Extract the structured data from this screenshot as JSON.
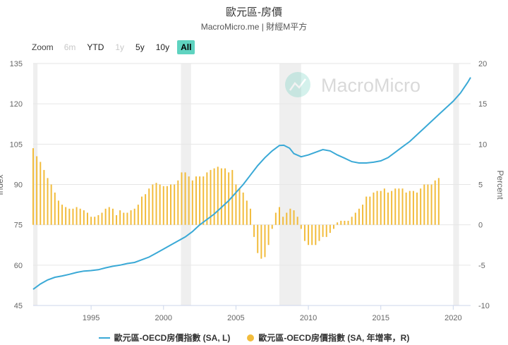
{
  "header": {
    "title": "歐元區-房價",
    "subtitle": "MacroMicro.me | 財經M平方"
  },
  "zoom": {
    "label": "Zoom",
    "buttons": [
      {
        "label": "6m",
        "state": "disabled"
      },
      {
        "label": "YTD",
        "state": "normal"
      },
      {
        "label": "1y",
        "state": "disabled"
      },
      {
        "label": "5y",
        "state": "normal"
      },
      {
        "label": "10y",
        "state": "normal"
      },
      {
        "label": "All",
        "state": "active"
      }
    ]
  },
  "watermark": {
    "text": "MacroMicro"
  },
  "legend": {
    "series1": "歐元區-OECD房價指數 (SA, L)",
    "series2": "歐元區-OECD房價指數 (SA, 年增率，R)"
  },
  "chart_data": {
    "type": "line+bar",
    "x_range": [
      1991.0,
      2021.2
    ],
    "x_ticks": [
      1995,
      2000,
      2005,
      2010,
      2015,
      2020
    ],
    "y_left": {
      "label": "Index",
      "range": [
        45,
        135
      ],
      "ticks": [
        45,
        60,
        75,
        90,
        105,
        120,
        135
      ]
    },
    "y_right": {
      "label": "Percent",
      "range": [
        -10,
        20
      ],
      "ticks": [
        -10,
        -5,
        0,
        5,
        10,
        15,
        20
      ]
    },
    "recessions": [
      [
        1991.0,
        1991.3
      ],
      [
        2001.2,
        2001.9
      ],
      [
        2008.0,
        2009.5
      ],
      [
        2020.0,
        2020.4
      ]
    ],
    "colors": {
      "line": "#3aa9d6",
      "bar": "#f2bc3c",
      "recession": "#efefef"
    },
    "series": [
      {
        "name": "歐元區-OECD房價指數 (SA, L)",
        "type": "line",
        "axis": "left",
        "points": [
          [
            1991.0,
            51.0
          ],
          [
            1991.5,
            53.0
          ],
          [
            1992.0,
            54.5
          ],
          [
            1992.5,
            55.5
          ],
          [
            1993.0,
            56.0
          ],
          [
            1993.5,
            56.6
          ],
          [
            1994.0,
            57.3
          ],
          [
            1994.5,
            57.8
          ],
          [
            1995.0,
            58.0
          ],
          [
            1995.5,
            58.3
          ],
          [
            1996.0,
            59.0
          ],
          [
            1996.5,
            59.6
          ],
          [
            1997.0,
            60.0
          ],
          [
            1997.5,
            60.6
          ],
          [
            1998.0,
            61.0
          ],
          [
            1998.5,
            62.0
          ],
          [
            1999.0,
            63.0
          ],
          [
            1999.5,
            64.5
          ],
          [
            2000.0,
            66.0
          ],
          [
            2000.5,
            67.5
          ],
          [
            2001.0,
            69.0
          ],
          [
            2001.5,
            70.5
          ],
          [
            2002.0,
            72.5
          ],
          [
            2002.5,
            75.0
          ],
          [
            2003.0,
            77.0
          ],
          [
            2003.5,
            79.0
          ],
          [
            2004.0,
            81.5
          ],
          [
            2004.5,
            84.0
          ],
          [
            2005.0,
            87.0
          ],
          [
            2005.5,
            90.0
          ],
          [
            2006.0,
            93.5
          ],
          [
            2006.5,
            97.0
          ],
          [
            2007.0,
            100.0
          ],
          [
            2007.5,
            102.5
          ],
          [
            2008.0,
            104.5
          ],
          [
            2008.3,
            104.6
          ],
          [
            2008.7,
            103.5
          ],
          [
            2009.0,
            101.5
          ],
          [
            2009.5,
            100.3
          ],
          [
            2010.0,
            101.0
          ],
          [
            2010.5,
            102.0
          ],
          [
            2011.0,
            103.0
          ],
          [
            2011.5,
            102.5
          ],
          [
            2012.0,
            101.0
          ],
          [
            2012.5,
            99.8
          ],
          [
            2013.0,
            98.5
          ],
          [
            2013.5,
            98.0
          ],
          [
            2014.0,
            98.0
          ],
          [
            2014.5,
            98.3
          ],
          [
            2015.0,
            98.8
          ],
          [
            2015.5,
            100.0
          ],
          [
            2016.0,
            102.0
          ],
          [
            2016.5,
            104.0
          ],
          [
            2017.0,
            106.0
          ],
          [
            2017.5,
            108.5
          ],
          [
            2018.0,
            111.0
          ],
          [
            2018.5,
            113.5
          ],
          [
            2019.0,
            116.0
          ],
          [
            2019.5,
            118.5
          ],
          [
            2020.0,
            121.0
          ],
          [
            2020.5,
            124.0
          ],
          [
            2021.0,
            128.0
          ],
          [
            2021.2,
            129.8
          ]
        ]
      },
      {
        "name": "歐元區-OECD房價指數 (SA, 年增率，R)",
        "type": "bar",
        "axis": "right",
        "start": 1991.0,
        "step": 0.25,
        "values": [
          9.5,
          8.5,
          7.8,
          6.8,
          5.8,
          5.0,
          4.0,
          3.0,
          2.5,
          2.2,
          2.0,
          2.0,
          2.2,
          2.0,
          1.8,
          1.5,
          1.0,
          1.0,
          1.2,
          1.5,
          2.0,
          2.2,
          2.0,
          1.2,
          1.8,
          1.5,
          1.5,
          1.8,
          2.0,
          2.5,
          3.5,
          3.8,
          4.5,
          5.0,
          5.2,
          5.0,
          4.8,
          4.8,
          5.0,
          5.0,
          5.5,
          6.5,
          6.5,
          6.0,
          5.5,
          6.0,
          6.0,
          6.0,
          6.5,
          6.8,
          7.0,
          7.2,
          7.0,
          7.0,
          6.5,
          6.8,
          5.0,
          4.5,
          4.0,
          3.0,
          2.0,
          -1.5,
          -3.5,
          -4.2,
          -4.0,
          -2.5,
          -0.5,
          1.5,
          2.2,
          1.0,
          1.5,
          2.0,
          1.8,
          1.0,
          -0.5,
          -2.0,
          -2.5,
          -2.5,
          -2.5,
          -2.0,
          -1.5,
          -1.5,
          -1.0,
          -0.5,
          0.3,
          0.5,
          0.5,
          0.5,
          1.0,
          1.5,
          2.0,
          2.5,
          3.5,
          3.5,
          4.0,
          4.2,
          4.2,
          4.5,
          4.0,
          4.2,
          4.5,
          4.5,
          4.5,
          4.0,
          4.2,
          4.2,
          4.0,
          4.5,
          5.0,
          5.0,
          5.0,
          5.5,
          5.8
        ]
      }
    ]
  }
}
